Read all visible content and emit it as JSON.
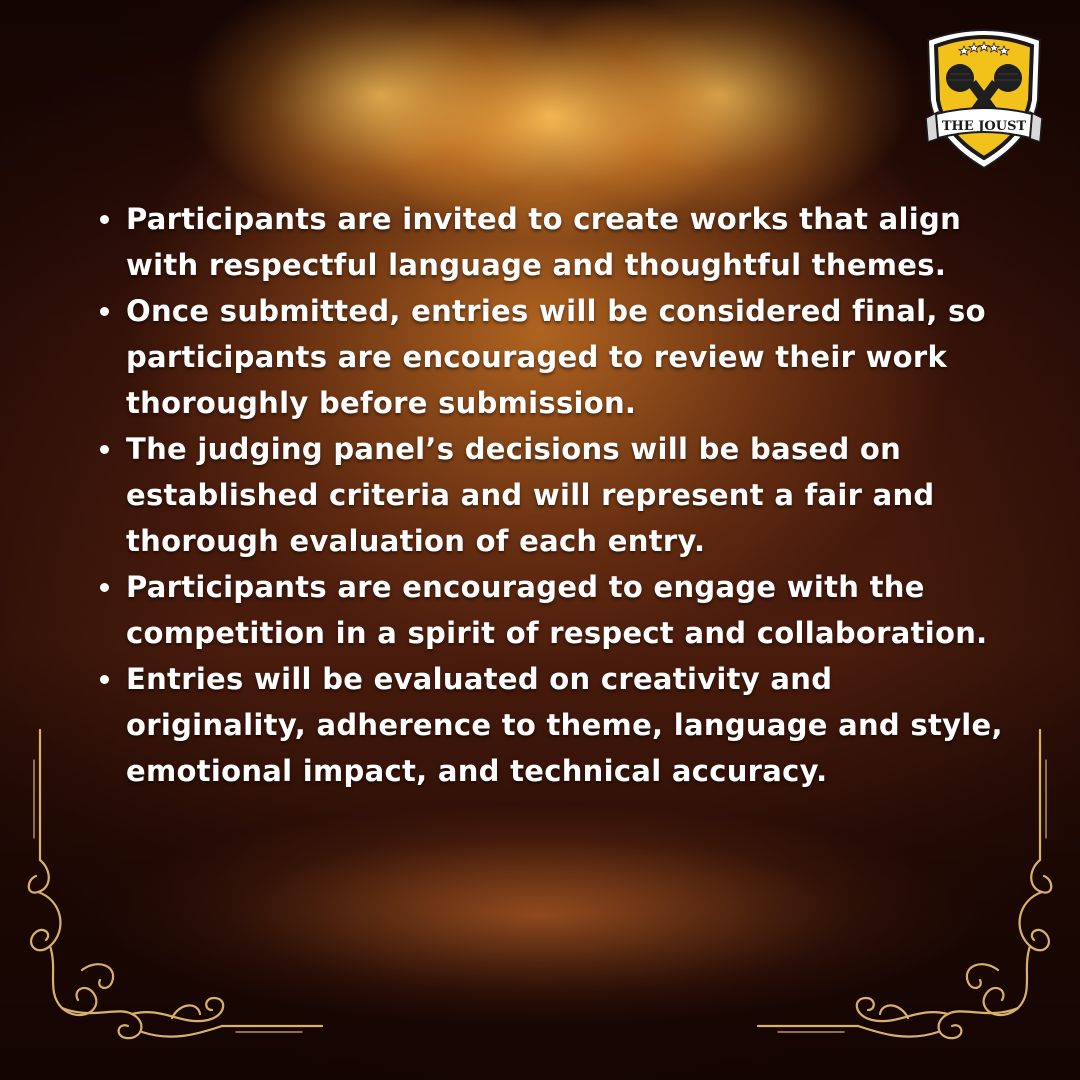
{
  "logo": {
    "text": "THE JOUST",
    "icon": "crossed-microphones-shield-icon"
  },
  "rules": [
    "Participants are invited to create works that align with respectful language and thoughtful themes.",
    "Once submitted, entries will be considered final, so participants are encouraged to review their work thoroughly before submission.",
    "The judging panel’s decisions will be based on established criteria and will represent a fair and thorough evaluation of each entry.",
    "Participants are encouraged to engage with the competition in a spirit of respect and collaboration.",
    "Entries will be evaluated on creativity and originality, adherence to theme, language and style, emotional impact, and technical accuracy."
  ],
  "colors": {
    "gold": "#d9b26a",
    "shield_yellow": "#f2c21b",
    "text": "#ffffff"
  }
}
